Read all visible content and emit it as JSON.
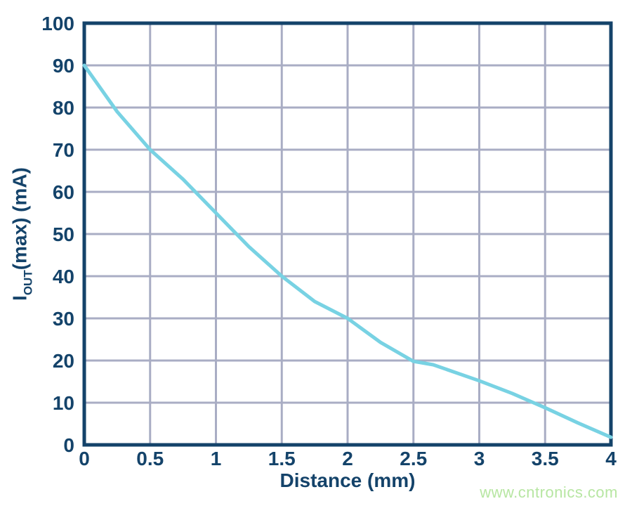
{
  "chart_data": {
    "type": "line",
    "title": "",
    "xlabel": "Distance (mm)",
    "ylabel": "IOUT(max) (mA)",
    "ylabel_parts": {
      "main": "I",
      "sub": "OUT",
      "rest": "(max) (mA)"
    },
    "xlim": [
      0,
      4
    ],
    "ylim": [
      0,
      100
    ],
    "xticks": [
      0,
      0.5,
      1,
      1.5,
      2,
      2.5,
      3,
      3.5,
      4
    ],
    "xtick_labels": [
      "0",
      "0.5",
      "1",
      "1.5",
      "2",
      "2.5",
      "3",
      "3.5",
      "4"
    ],
    "yticks": [
      0,
      10,
      20,
      30,
      40,
      50,
      60,
      70,
      80,
      90,
      100
    ],
    "ytick_labels": [
      "0",
      "10",
      "20",
      "30",
      "40",
      "50",
      "60",
      "70",
      "80",
      "90",
      "100"
    ],
    "grid": true,
    "legend": "none",
    "series": [
      {
        "name": "IOUT(max)",
        "color": "#78d2e3",
        "points": [
          [
            0,
            90
          ],
          [
            0.25,
            79
          ],
          [
            0.5,
            70
          ],
          [
            0.75,
            63
          ],
          [
            1.0,
            55
          ],
          [
            1.25,
            47
          ],
          [
            1.5,
            40
          ],
          [
            1.75,
            34
          ],
          [
            2.0,
            30
          ],
          [
            2.25,
            24.3
          ],
          [
            2.5,
            19.8
          ],
          [
            2.65,
            19.0
          ],
          [
            3.0,
            15.2
          ],
          [
            3.25,
            12.2
          ],
          [
            3.5,
            8.8
          ],
          [
            3.75,
            5.2
          ],
          [
            4.0,
            1.8
          ]
        ]
      }
    ]
  },
  "watermark": {
    "text": "www.cntronics.com",
    "color": "#b7e6a2"
  },
  "colors": {
    "axis": "#14436a",
    "grid": "#a9adc4",
    "curve": "#78d2e3",
    "background": "#ffffff"
  }
}
